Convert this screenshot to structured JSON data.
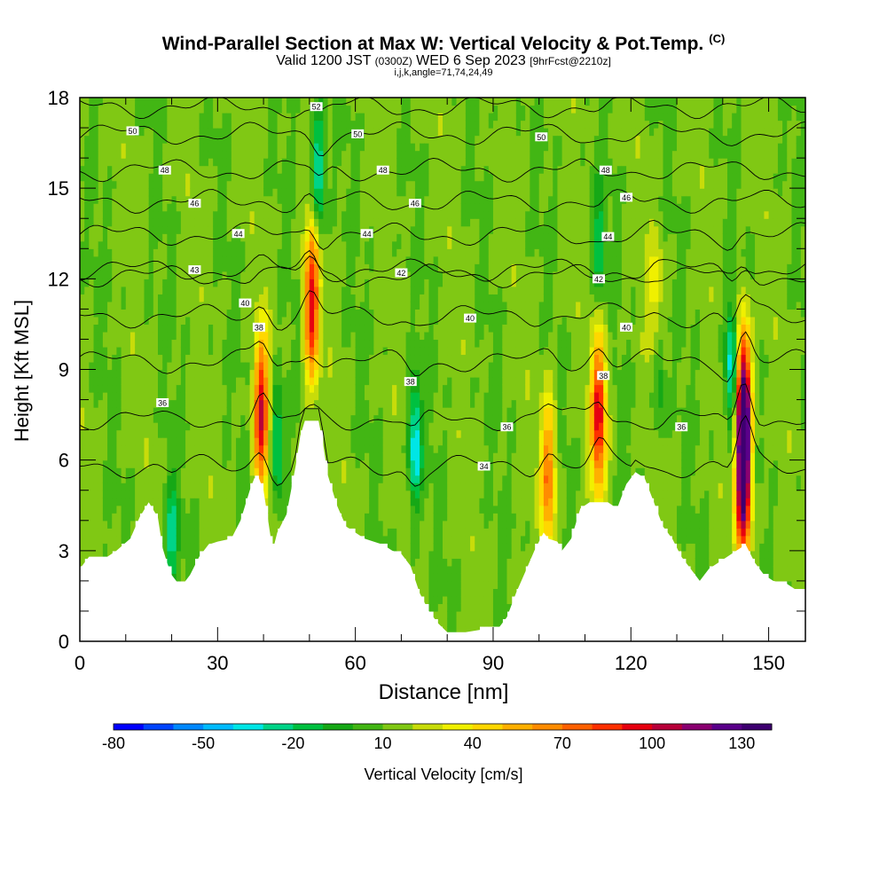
{
  "header": {
    "title": "Wind-Parallel Section at Max W: Vertical Velocity & Pot.Temp.",
    "title_tag": "(C)",
    "subtitle_main": "Valid 1200 JST",
    "subtitle_zulu": "(0300Z)",
    "subtitle_date": "WED 6 Sep 2023",
    "subtitle_fcst": "[9hrFcst@2210z]",
    "subtitle_line2": "i,j,k,angle=71,74,24,49"
  },
  "chart_data": {
    "type": "heatmap",
    "xlabel": "Distance [nm]",
    "ylabel": "Height [Kft MSL]",
    "xlim": [
      0,
      158
    ],
    "ylim": [
      0,
      18
    ],
    "x_ticks": [
      "0",
      "30",
      "60",
      "90",
      "120",
      "150"
    ],
    "x_tick_values": [
      0,
      30,
      60,
      90,
      120,
      150
    ],
    "y_ticks": [
      "0",
      "3",
      "6",
      "9",
      "12",
      "15",
      "18"
    ],
    "y_tick_values": [
      0,
      3,
      6,
      9,
      12,
      15,
      18
    ],
    "colorbar": {
      "label": "Vertical Velocity [cm/s]",
      "tick_labels": [
        "-80",
        "-50",
        "-20",
        "10",
        "40",
        "70",
        "100",
        "130"
      ],
      "tick_values": [
        -80,
        -50,
        -20,
        10,
        40,
        70,
        100,
        130
      ],
      "min": -80,
      "max": 140,
      "step": 10,
      "colors": [
        "#0000ff",
        "#0044ff",
        "#0088ff",
        "#00bbff",
        "#00e6e6",
        "#00d488",
        "#00c040",
        "#16a816",
        "#42b614",
        "#80c814",
        "#c8dc0a",
        "#f0f000",
        "#ffd700",
        "#ffb000",
        "#ff8c00",
        "#ff6000",
        "#ff3000",
        "#e60010",
        "#b8003a",
        "#8a0070",
        "#5a008a",
        "#3e0070"
      ]
    },
    "terrain_kft": [
      [
        0,
        2.4
      ],
      [
        2,
        2.8
      ],
      [
        6,
        2.8
      ],
      [
        8,
        3.0
      ],
      [
        11,
        3.4
      ],
      [
        13,
        4.1
      ],
      [
        15,
        4.6
      ],
      [
        17,
        4.1
      ],
      [
        18,
        3.1
      ],
      [
        19,
        2.6
      ],
      [
        20,
        2.2
      ],
      [
        22,
        1.8
      ],
      [
        24,
        2.2
      ],
      [
        26,
        2.8
      ],
      [
        28,
        3.2
      ],
      [
        30,
        3.3
      ],
      [
        33,
        3.4
      ],
      [
        35,
        4.0
      ],
      [
        37,
        5.0
      ],
      [
        38,
        5.4
      ],
      [
        39,
        5.4
      ],
      [
        40,
        5.0
      ],
      [
        41,
        4.0
      ],
      [
        42,
        3.0
      ],
      [
        43,
        3.6
      ],
      [
        45,
        4.2
      ],
      [
        47,
        5.8
      ],
      [
        48,
        6.8
      ],
      [
        49,
        7.3
      ],
      [
        52,
        7.3
      ],
      [
        53,
        6.5
      ],
      [
        54,
        5.5
      ],
      [
        56,
        4.5
      ],
      [
        58,
        3.8
      ],
      [
        60,
        3.6
      ],
      [
        62,
        3.4
      ],
      [
        64,
        3.3
      ],
      [
        66,
        3.2
      ],
      [
        68,
        3.0
      ],
      [
        70,
        2.9
      ],
      [
        72,
        2.5
      ],
      [
        74,
        1.6
      ],
      [
        76,
        1.0
      ],
      [
        78,
        0.6
      ],
      [
        80,
        0.3
      ],
      [
        84,
        0.3
      ],
      [
        88,
        0.4
      ],
      [
        91,
        0.4
      ],
      [
        93,
        0.8
      ],
      [
        95,
        1.6
      ],
      [
        97,
        2.3
      ],
      [
        99,
        3.0
      ],
      [
        101,
        3.6
      ],
      [
        102,
        3.4
      ],
      [
        104,
        3.3
      ],
      [
        105,
        3.0
      ],
      [
        107,
        3.4
      ],
      [
        109,
        4.4
      ],
      [
        111,
        4.6
      ],
      [
        113,
        4.6
      ],
      [
        115,
        4.6
      ],
      [
        117,
        4.4
      ],
      [
        119,
        5.2
      ],
      [
        121,
        5.6
      ],
      [
        123,
        5.4
      ],
      [
        125,
        4.6
      ],
      [
        127,
        3.8
      ],
      [
        129,
        3.4
      ],
      [
        131,
        2.8
      ],
      [
        133,
        2.4
      ],
      [
        135,
        2.0
      ],
      [
        137,
        2.4
      ],
      [
        139,
        2.6
      ],
      [
        141,
        2.8
      ],
      [
        143,
        3.0
      ],
      [
        145,
        3.2
      ],
      [
        147,
        2.6
      ],
      [
        149,
        2.2
      ],
      [
        151,
        2.0
      ],
      [
        154,
        1.9
      ],
      [
        156,
        1.7
      ],
      [
        158,
        1.7
      ]
    ],
    "updrafts": [
      {
        "x": 39.5,
        "y_center": 7.5,
        "peak": 95
      },
      {
        "x": 50.5,
        "y_center": 11.2,
        "peak": 95
      },
      {
        "x": 102,
        "y_center": 5.5,
        "peak": 70
      },
      {
        "x": 113,
        "y_center": 7.5,
        "peak": 95
      },
      {
        "x": 125.5,
        "y_center": 10.8,
        "peak": 40
      },
      {
        "x": 144.5,
        "y_center": 7.8,
        "peak": 135
      },
      {
        "x": 144.5,
        "y_center": 5.0,
        "peak": 110
      }
    ],
    "downdrafts": [
      {
        "x": 43,
        "y_center": 6.5,
        "peak": -30
      },
      {
        "x": 52,
        "y_center": 15.5,
        "peak": -40
      },
      {
        "x": 73,
        "y_center": 6.5,
        "peak": -45
      },
      {
        "x": 113,
        "y_center": 13.0,
        "peak": -20
      },
      {
        "x": 126,
        "y_center": 9.0,
        "peak": -25
      },
      {
        "x": 142,
        "y_center": 9.0,
        "peak": -45
      },
      {
        "x": 20,
        "y_center": 3.5,
        "peak": -25
      }
    ],
    "theta_contour_labels": [
      {
        "text": "52",
        "x": 51.5,
        "y": 17.7
      },
      {
        "text": "50",
        "x": 11.5,
        "y": 16.9
      },
      {
        "text": "50",
        "x": 60.5,
        "y": 16.8
      },
      {
        "text": "50",
        "x": 100.5,
        "y": 16.7
      },
      {
        "text": "48",
        "x": 18.5,
        "y": 15.6
      },
      {
        "text": "48",
        "x": 66,
        "y": 15.6
      },
      {
        "text": "48",
        "x": 114.5,
        "y": 15.6
      },
      {
        "text": "46",
        "x": 25,
        "y": 14.5
      },
      {
        "text": "46",
        "x": 73,
        "y": 14.5
      },
      {
        "text": "46",
        "x": 119,
        "y": 14.7
      },
      {
        "text": "44",
        "x": 34.5,
        "y": 13.5
      },
      {
        "text": "44",
        "x": 62.5,
        "y": 13.5
      },
      {
        "text": "44",
        "x": 115,
        "y": 13.4
      },
      {
        "text": "43",
        "x": 25,
        "y": 12.3
      },
      {
        "text": "42",
        "x": 70,
        "y": 12.2
      },
      {
        "text": "42",
        "x": 113,
        "y": 12.0
      },
      {
        "text": "40",
        "x": 36,
        "y": 11.2
      },
      {
        "text": "40",
        "x": 85,
        "y": 10.7
      },
      {
        "text": "40",
        "x": 119,
        "y": 10.4
      },
      {
        "text": "38",
        "x": 39,
        "y": 10.4
      },
      {
        "text": "38",
        "x": 72,
        "y": 8.6
      },
      {
        "text": "38",
        "x": 114,
        "y": 8.8
      },
      {
        "text": "36",
        "x": 18,
        "y": 7.9
      },
      {
        "text": "36",
        "x": 93,
        "y": 7.1
      },
      {
        "text": "36",
        "x": 131,
        "y": 7.1
      },
      {
        "text": "34",
        "x": 88,
        "y": 5.8
      }
    ]
  }
}
